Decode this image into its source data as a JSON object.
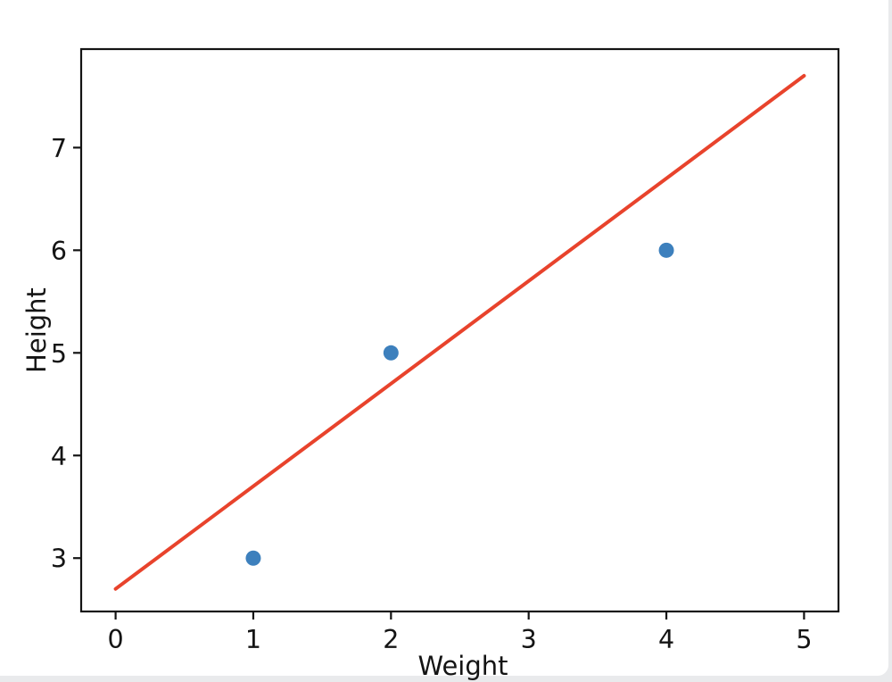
{
  "window": {
    "background": "#ffffff",
    "chrome_color": "#e9eaec"
  },
  "chart_data": {
    "type": "scatter",
    "title": "",
    "xlabel": "Weight",
    "ylabel": "Height",
    "xlim": [
      -0.25,
      5.25
    ],
    "ylim": [
      2.48,
      7.96
    ],
    "x_ticks": [
      0,
      1,
      2,
      3,
      4,
      5
    ],
    "y_ticks": [
      3,
      4,
      5,
      6,
      7
    ],
    "grid": false,
    "legend": null,
    "axis_color": "#141414",
    "tick_label_color": "#141414",
    "series": [
      {
        "name": "data-points",
        "type": "scatter",
        "color": "#3d80bd",
        "marker_radius": 8.5,
        "points": [
          {
            "x": 1,
            "y": 3
          },
          {
            "x": 2,
            "y": 5
          },
          {
            "x": 4,
            "y": 6
          }
        ]
      },
      {
        "name": "regression-line",
        "type": "line",
        "color": "#e8432c",
        "line_width": 4,
        "points": [
          {
            "x": 0,
            "y": 2.7
          },
          {
            "x": 5,
            "y": 7.7
          }
        ]
      }
    ]
  }
}
